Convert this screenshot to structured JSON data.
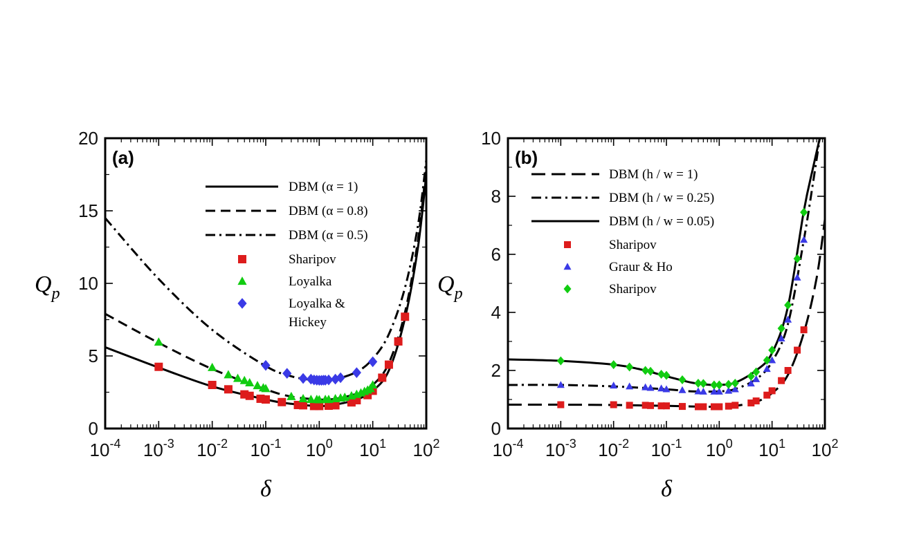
{
  "chart_data": [
    {
      "panel": "(a)",
      "type": "line",
      "xlabel": "δ",
      "ylabel": "Q",
      "ylabel_sub": "p",
      "xscale": "log",
      "xlim": [
        0.0001,
        100
      ],
      "ylim": [
        0,
        20
      ],
      "x_ticks": [
        {
          "value": 0.0001,
          "base": "10",
          "exp": "-4"
        },
        {
          "value": 0.001,
          "base": "10",
          "exp": "-3"
        },
        {
          "value": 0.01,
          "base": "10",
          "exp": "-2"
        },
        {
          "value": 0.1,
          "base": "10",
          "exp": "-1"
        },
        {
          "value": 1,
          "base": "10",
          "exp": "0"
        },
        {
          "value": 10,
          "base": "10",
          "exp": "1"
        },
        {
          "value": 100,
          "base": "10",
          "exp": "2"
        }
      ],
      "y_ticks": [
        {
          "value": 0,
          "label": "0"
        },
        {
          "value": 5,
          "label": "5"
        },
        {
          "value": 10,
          "label": "10"
        },
        {
          "value": 15,
          "label": "15"
        },
        {
          "value": 20,
          "label": "20"
        }
      ],
      "legend_position": "top-right",
      "series": [
        {
          "name": "DBM (α = 1)",
          "kind": "line",
          "dash": "solid",
          "color": "#000000",
          "x": [
            0.0001,
            0.001,
            0.01,
            0.1,
            0.3,
            1,
            2,
            5,
            10,
            20,
            40,
            70,
            100
          ],
          "y": [
            5.6,
            4.2,
            2.9,
            2.0,
            1.7,
            1.55,
            1.65,
            2.0,
            2.6,
            4.0,
            7.6,
            12.5,
            17.5
          ]
        },
        {
          "name": "DBM (α = 0.8)",
          "kind": "line",
          "dash": "dashed",
          "color": "#000000",
          "x": [
            0.0001,
            0.001,
            0.01,
            0.1,
            0.3,
            1,
            2,
            5,
            10,
            20,
            40,
            70,
            100
          ],
          "y": [
            7.9,
            5.9,
            4.1,
            2.7,
            2.2,
            2.0,
            2.05,
            2.4,
            3.0,
            4.5,
            8.0,
            13.0,
            18.0
          ]
        },
        {
          "name": "DBM (α = 0.5)",
          "kind": "line",
          "dash": "dashdot",
          "color": "#000000",
          "x": [
            0.0001,
            0.001,
            0.01,
            0.1,
            0.3,
            0.7,
            1,
            2,
            5,
            10,
            20,
            40,
            70,
            100
          ],
          "y": [
            14.5,
            10.3,
            6.8,
            4.3,
            3.6,
            3.35,
            3.3,
            3.4,
            3.9,
            4.8,
            6.5,
            9.7,
            14.0,
            18.5
          ]
        },
        {
          "name": "Sharipov",
          "kind": "marker",
          "marker": "square",
          "color": "#dd1c1c",
          "x": [
            0.001,
            0.01,
            0.02,
            0.04,
            0.05,
            0.08,
            0.1,
            0.2,
            0.4,
            0.5,
            0.8,
            1,
            1.5,
            2,
            4,
            5,
            8,
            10,
            15,
            20,
            30,
            40
          ],
          "y": [
            4.25,
            3.0,
            2.7,
            2.35,
            2.25,
            2.05,
            2.0,
            1.82,
            1.62,
            1.6,
            1.55,
            1.55,
            1.57,
            1.6,
            1.8,
            1.95,
            2.3,
            2.6,
            3.5,
            4.4,
            6.0,
            7.7
          ]
        },
        {
          "name": "Loyalka",
          "kind": "marker",
          "marker": "triangle",
          "color": "#11cc11",
          "x": [
            0.001,
            0.01,
            0.02,
            0.03,
            0.04,
            0.05,
            0.07,
            0.09,
            0.1,
            0.3,
            0.5,
            0.7,
            0.9,
            1,
            1.3,
            1.5,
            2,
            2.5,
            3,
            4,
            5,
            6,
            7,
            8,
            9,
            10
          ],
          "y": [
            5.95,
            4.2,
            3.7,
            3.45,
            3.3,
            3.15,
            2.95,
            2.8,
            2.75,
            2.2,
            2.05,
            2.0,
            2.0,
            1.98,
            2.0,
            2.0,
            2.05,
            2.1,
            2.15,
            2.25,
            2.35,
            2.45,
            2.55,
            2.65,
            2.75,
            3.0
          ]
        },
        {
          "name": "Loyalka & Hickey",
          "name_line1": "Loyalka &",
          "name_line2": "Hickey",
          "kind": "marker",
          "marker": "diamond",
          "color": "#3a3ae6",
          "x": [
            0.1,
            0.25,
            0.5,
            0.7,
            0.8,
            0.9,
            1,
            1.1,
            1.2,
            1.3,
            1.5,
            2,
            2.5,
            5,
            10
          ],
          "y": [
            4.35,
            3.8,
            3.45,
            3.4,
            3.35,
            3.33,
            3.32,
            3.32,
            3.33,
            3.33,
            3.35,
            3.4,
            3.5,
            3.85,
            4.6
          ]
        }
      ]
    },
    {
      "panel": "(b)",
      "type": "line",
      "xlabel": "δ",
      "ylabel": "Q",
      "ylabel_sub": "p",
      "xscale": "log",
      "xlim": [
        0.0001,
        100
      ],
      "ylim": [
        0,
        10
      ],
      "x_ticks": [
        {
          "value": 0.0001,
          "base": "10",
          "exp": "-4"
        },
        {
          "value": 0.001,
          "base": "10",
          "exp": "-3"
        },
        {
          "value": 0.01,
          "base": "10",
          "exp": "-2"
        },
        {
          "value": 0.1,
          "base": "10",
          "exp": "-1"
        },
        {
          "value": 1,
          "base": "10",
          "exp": "0"
        },
        {
          "value": 10,
          "base": "10",
          "exp": "1"
        },
        {
          "value": 100,
          "base": "10",
          "exp": "2"
        }
      ],
      "y_ticks": [
        {
          "value": 0,
          "label": "0"
        },
        {
          "value": 2,
          "label": "2"
        },
        {
          "value": 4,
          "label": "4"
        },
        {
          "value": 6,
          "label": "6"
        },
        {
          "value": 8,
          "label": "8"
        },
        {
          "value": 10,
          "label": "10"
        }
      ],
      "legend_position": "top-left",
      "series": [
        {
          "name": "DBM (h / w = 1)",
          "kind": "line",
          "dash": "longdash",
          "color": "#000000",
          "x": [
            0.0001,
            0.001,
            0.01,
            0.1,
            0.3,
            1,
            2,
            5,
            10,
            20,
            40,
            70,
            100
          ],
          "y": [
            0.82,
            0.82,
            0.81,
            0.78,
            0.76,
            0.75,
            0.78,
            0.92,
            1.22,
            1.85,
            3.3,
            5.2,
            7.2
          ]
        },
        {
          "name": "DBM (h / w = 0.25)",
          "kind": "line",
          "dash": "dashdot",
          "color": "#000000",
          "x": [
            0.0001,
            0.001,
            0.01,
            0.1,
            0.3,
            1,
            2,
            5,
            10,
            20,
            40,
            60,
            80
          ],
          "y": [
            1.5,
            1.5,
            1.45,
            1.35,
            1.28,
            1.28,
            1.36,
            1.7,
            2.3,
            3.6,
            6.5,
            8.5,
            10.0
          ]
        },
        {
          "name": "DBM (h / w = 0.05)",
          "kind": "line",
          "dash": "solid",
          "color": "#000000",
          "x": [
            0.0001,
            0.001,
            0.01,
            0.03,
            0.1,
            0.3,
            0.7,
            1,
            2,
            5,
            10,
            20,
            40,
            60,
            80
          ],
          "y": [
            2.38,
            2.33,
            2.2,
            2.05,
            1.8,
            1.58,
            1.5,
            1.5,
            1.58,
            2.0,
            2.6,
            4.2,
            7.5,
            9.0,
            10.0
          ]
        },
        {
          "name": "Sharipov",
          "kind": "marker",
          "marker": "square",
          "color": "#dd1c1c",
          "x": [
            0.001,
            0.01,
            0.02,
            0.04,
            0.05,
            0.08,
            0.1,
            0.2,
            0.4,
            0.5,
            0.8,
            1,
            1.5,
            2,
            4,
            5,
            8,
            10,
            15,
            20,
            30,
            40
          ],
          "y": [
            0.82,
            0.82,
            0.8,
            0.8,
            0.79,
            0.78,
            0.78,
            0.76,
            0.75,
            0.75,
            0.75,
            0.75,
            0.77,
            0.8,
            0.88,
            0.95,
            1.15,
            1.3,
            1.65,
            2.0,
            2.7,
            3.4
          ]
        },
        {
          "name": "Graur & Ho",
          "kind": "marker",
          "marker": "triangle",
          "color": "#3a3ae6",
          "x": [
            0.001,
            0.01,
            0.02,
            0.04,
            0.05,
            0.08,
            0.1,
            0.2,
            0.4,
            0.5,
            0.8,
            1,
            1.5,
            2,
            4,
            5,
            8,
            10,
            15,
            20,
            30,
            40
          ],
          "y": [
            1.5,
            1.48,
            1.45,
            1.42,
            1.4,
            1.38,
            1.35,
            1.32,
            1.28,
            1.27,
            1.27,
            1.27,
            1.3,
            1.35,
            1.55,
            1.7,
            2.05,
            2.35,
            3.1,
            3.75,
            5.2,
            6.5
          ]
        },
        {
          "name": "Sharipov",
          "kind": "marker",
          "marker": "diamond",
          "color": "#11cc11",
          "x": [
            0.001,
            0.01,
            0.02,
            0.04,
            0.05,
            0.08,
            0.1,
            0.2,
            0.4,
            0.5,
            0.8,
            1,
            1.5,
            2,
            4,
            5,
            8,
            10,
            15,
            20,
            30,
            40
          ],
          "y": [
            2.33,
            2.2,
            2.12,
            2.0,
            1.97,
            1.87,
            1.83,
            1.68,
            1.56,
            1.55,
            1.5,
            1.5,
            1.52,
            1.56,
            1.8,
            1.95,
            2.35,
            2.7,
            3.45,
            4.25,
            5.85,
            7.45
          ]
        }
      ]
    }
  ]
}
